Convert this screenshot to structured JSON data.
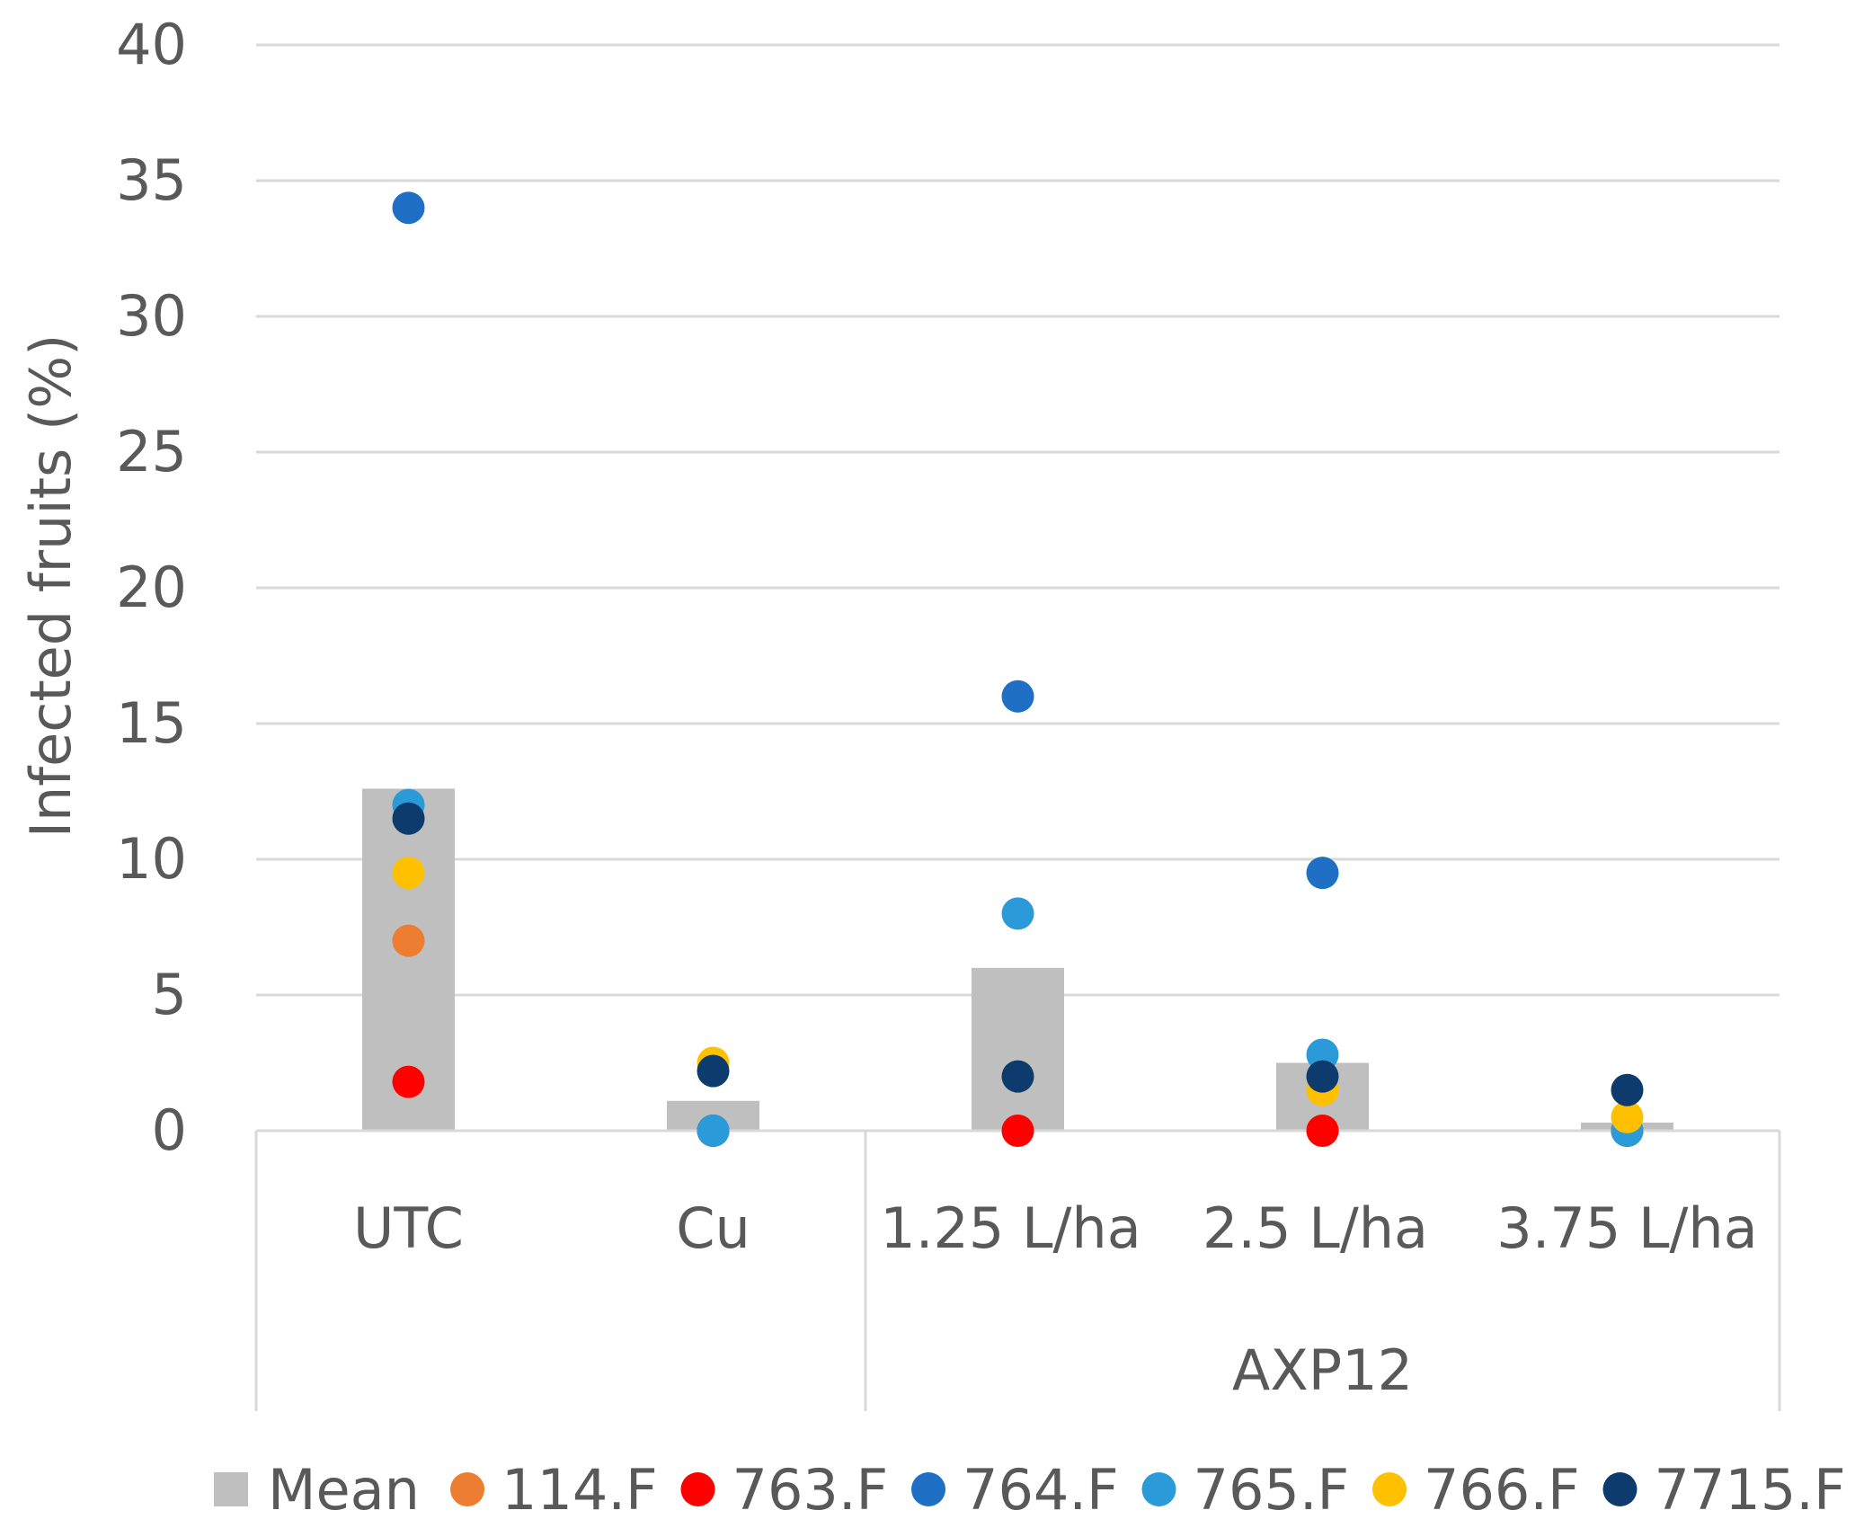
{
  "chart_data": {
    "type": "bar",
    "title": "",
    "xlabel": "",
    "ylabel": "Infected fruits (%)",
    "ylim": [
      0,
      40
    ],
    "yticks": [
      0,
      5,
      10,
      15,
      20,
      25,
      30,
      35,
      40
    ],
    "categories": [
      "UTC",
      "Cu",
      "1.25 L/ha",
      "2.5 L/ha",
      "3.75 L/ha"
    ],
    "category_groups": [
      {
        "label": "",
        "from": 0,
        "to": 1
      },
      {
        "label": "AXP12",
        "from": 2,
        "to": 4
      }
    ],
    "bar_series": {
      "name": "Mean",
      "color": "#bfbfbf",
      "values": [
        12.6,
        1.1,
        6.0,
        2.5,
        0.3
      ]
    },
    "point_series": [
      {
        "name": "114.F",
        "color": "#ed7d31",
        "values": [
          7.0,
          0.0,
          0.0,
          0.0,
          0.0
        ]
      },
      {
        "name": "763.F",
        "color": "#ff0000",
        "values": [
          1.8,
          0.0,
          0.0,
          0.0,
          0.0
        ]
      },
      {
        "name": "764.F",
        "color": "#1f6fc5",
        "values": [
          34.0,
          0.0,
          16.0,
          9.5,
          0.0
        ]
      },
      {
        "name": "765.F",
        "color": "#2a9ad8",
        "values": [
          12.0,
          0.0,
          8.0,
          2.8,
          0.0
        ]
      },
      {
        "name": "766.F",
        "color": "#ffc000",
        "values": [
          9.5,
          2.5,
          2.0,
          1.5,
          0.5
        ]
      },
      {
        "name": "7715.F",
        "color": "#0d3b6e",
        "values": [
          11.5,
          2.2,
          2.0,
          2.0,
          1.5
        ]
      }
    ],
    "legend": {
      "position": "bottom"
    }
  }
}
